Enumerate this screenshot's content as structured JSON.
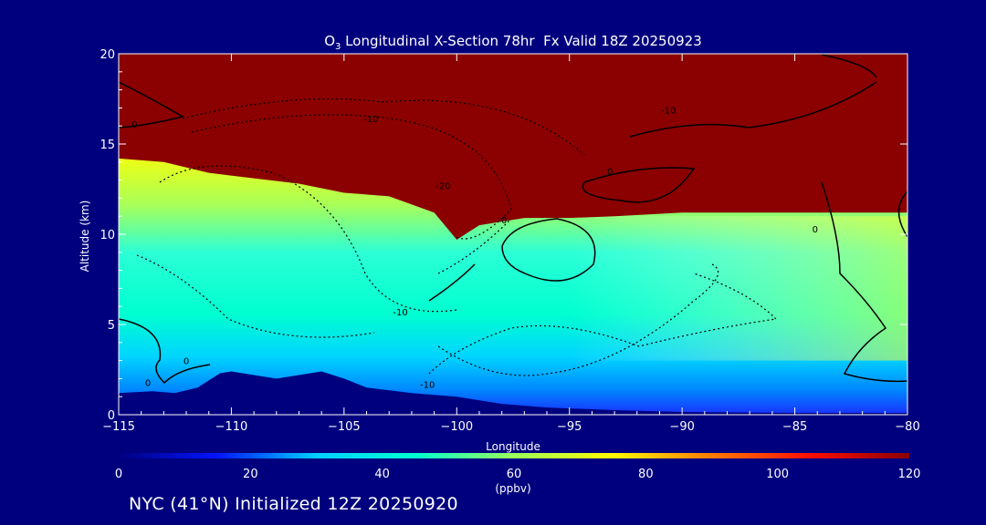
{
  "chart_data": {
    "type": "heatmap",
    "title_prefix": "O",
    "title_sub": "3",
    "title_rest": " Longitudinal X-Section 78hr  Fx Valid 18Z 20250923",
    "xlabel": "Longitude",
    "ylabel": "Altitude (km)",
    "xlim": [
      -115,
      -80
    ],
    "ylim": [
      0,
      20
    ],
    "xticks": [
      "-115",
      "-110",
      "-105",
      "-100",
      "-95",
      "-90",
      "-85",
      "-80"
    ],
    "yticks": [
      "0",
      "5",
      "10",
      "15",
      "20"
    ],
    "colorbar": {
      "label": "(ppbv)",
      "min": 0,
      "max": 120,
      "ticks": [
        "0",
        "20",
        "40",
        "60",
        "80",
        "100",
        "120"
      ],
      "stops": [
        "#00007e",
        "#0015ff",
        "#00cfff",
        "#00ffd0",
        "#9cff5a",
        "#fffb00",
        "#ff7a00",
        "#ff0d00",
        "#8b0000"
      ]
    },
    "tropopause_height_km": [
      [
        -115,
        14.2
      ],
      [
        -113,
        14.0
      ],
      [
        -111,
        13.4
      ],
      [
        -109,
        13.1
      ],
      [
        -107,
        12.8
      ],
      [
        -105,
        12.3
      ],
      [
        -103,
        12.1
      ],
      [
        -101,
        11.2
      ],
      [
        -100,
        9.7
      ],
      [
        -99,
        10.5
      ],
      [
        -97,
        10.9
      ],
      [
        -95,
        10.9
      ],
      [
        -93,
        11.0
      ],
      [
        -90,
        11.2
      ],
      [
        -87,
        11.2
      ],
      [
        -85,
        11.2
      ],
      [
        -82,
        11.2
      ],
      [
        -80,
        11.2
      ]
    ],
    "terrain_height_km": [
      [
        -115,
        1.2
      ],
      [
        -113.5,
        1.3
      ],
      [
        -112.5,
        1.2
      ],
      [
        -111.5,
        1.5
      ],
      [
        -110.5,
        2.3
      ],
      [
        -110,
        2.4
      ],
      [
        -109,
        2.2
      ],
      [
        -108,
        2.0
      ],
      [
        -107,
        2.2
      ],
      [
        -106,
        2.4
      ],
      [
        -105,
        2.0
      ],
      [
        -104,
        1.5
      ],
      [
        -102,
        1.2
      ],
      [
        -100,
        1.0
      ],
      [
        -98,
        0.6
      ],
      [
        -96,
        0.4
      ],
      [
        -93,
        0.25
      ],
      [
        -90,
        0.15
      ],
      [
        -85,
        0.1
      ],
      [
        -80,
        0.1
      ]
    ],
    "contour_labels": [
      {
        "text": "0",
        "x": -114.3,
        "y": 15.9
      },
      {
        "text": "-10",
        "x": -103.8,
        "y": 16.2
      },
      {
        "text": "-10",
        "x": -90.6,
        "y": 16.7
      },
      {
        "text": "-20",
        "x": -100.6,
        "y": 12.5
      },
      {
        "text": "0",
        "x": -93.2,
        "y": 13.3
      },
      {
        "text": "0",
        "x": -97.9,
        "y": 10.6
      },
      {
        "text": "-10",
        "x": -102.5,
        "y": 5.5
      },
      {
        "text": "0",
        "x": -112.0,
        "y": 2.8
      },
      {
        "text": "0",
        "x": -113.7,
        "y": 1.6
      },
      {
        "text": "-10",
        "x": -101.3,
        "y": 1.5
      },
      {
        "text": "0",
        "x": -84.1,
        "y": 10.1
      }
    ]
  },
  "footer": "NYC (41°N) Initialized 12Z 20250920"
}
